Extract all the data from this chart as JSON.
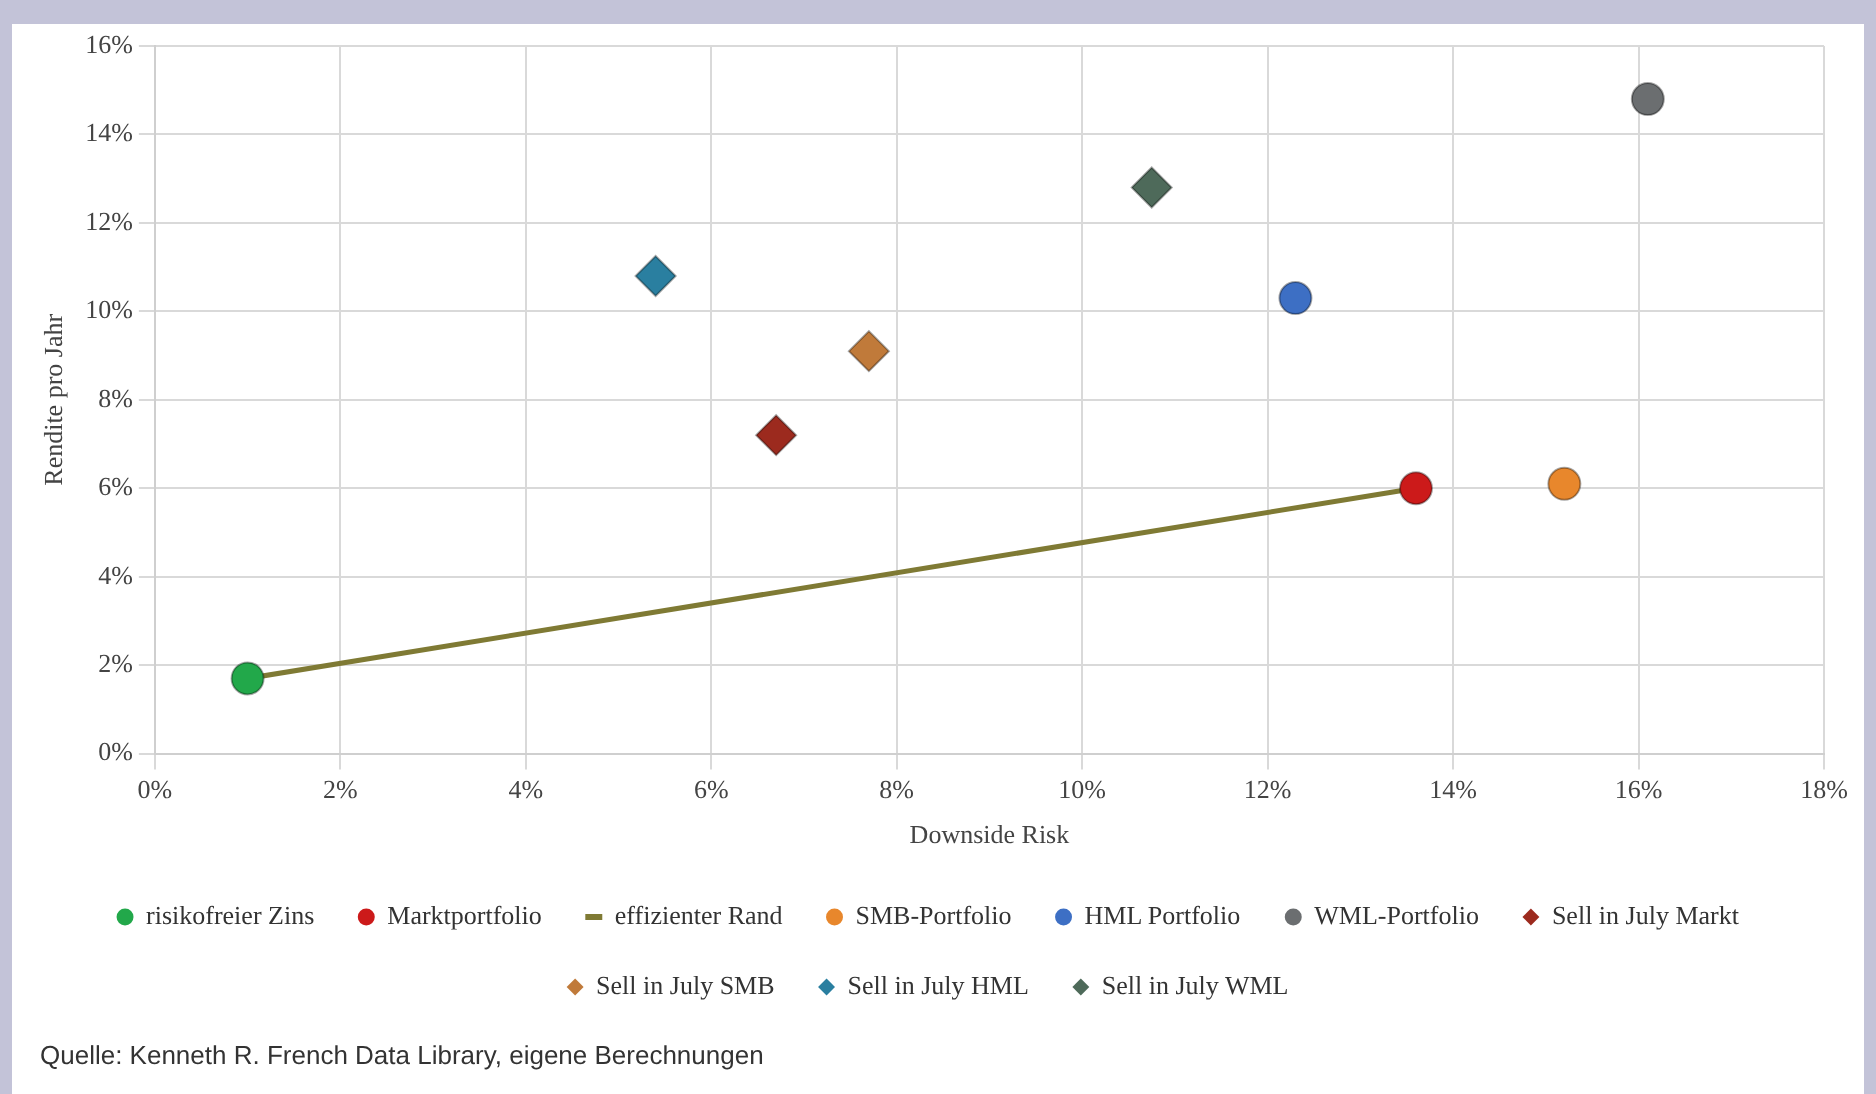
{
  "chart_data": {
    "type": "scatter",
    "xlabel": "Downside Risk",
    "ylabel": "Rendite pro Jahr",
    "xlim": [
      0,
      18
    ],
    "xticks": [
      {
        "value": 0,
        "label": "0%"
      },
      {
        "value": 2,
        "label": "2%"
      },
      {
        "value": 4,
        "label": "4%"
      },
      {
        "value": 6,
        "label": "6%"
      },
      {
        "value": 8,
        "label": "8%"
      },
      {
        "value": 10,
        "label": "10%"
      },
      {
        "value": 12,
        "label": "12%"
      },
      {
        "value": 14,
        "label": "14%"
      },
      {
        "value": 16,
        "label": "16%"
      },
      {
        "value": 18,
        "label": "18%"
      }
    ],
    "ylim": [
      0,
      16
    ],
    "yticks": [
      {
        "value": 0,
        "label": "0%"
      },
      {
        "value": 2,
        "label": "2%"
      },
      {
        "value": 4,
        "label": "4%"
      },
      {
        "value": 6,
        "label": "6%"
      },
      {
        "value": 8,
        "label": "8%"
      },
      {
        "value": 10,
        "label": "10%"
      },
      {
        "value": 12,
        "label": "12%"
      },
      {
        "value": 14,
        "label": "14%"
      },
      {
        "value": 16,
        "label": "16%"
      }
    ],
    "grid": true,
    "legend": "bottom",
    "series": [
      {
        "name": "risikofreier Zins",
        "marker": "circle",
        "color": "#22a84a",
        "x": [
          1.0
        ],
        "values": [
          1.7
        ]
      },
      {
        "name": "Marktportfolio",
        "marker": "circle",
        "color": "#cc1a1a",
        "x": [
          13.6
        ],
        "values": [
          6.0
        ]
      },
      {
        "name": "effizienter Rand",
        "type": "line",
        "marker": "none",
        "color": "#7f7a34",
        "x": [
          1.0,
          13.6
        ],
        "values": [
          1.7,
          6.0
        ]
      },
      {
        "name": "SMB-Portfolio",
        "marker": "circle",
        "color": "#e8872c",
        "x": [
          15.2
        ],
        "values": [
          6.1
        ]
      },
      {
        "name": "HML Portfolio",
        "marker": "circle",
        "color": "#3d6fc4",
        "x": [
          12.3
        ],
        "values": [
          10.3
        ]
      },
      {
        "name": "WML-Portfolio",
        "marker": "circle",
        "color": "#6b6e70",
        "x": [
          16.1
        ],
        "values": [
          14.8
        ]
      },
      {
        "name": "Sell in July Markt",
        "marker": "diamond",
        "color": "#9c2a1e",
        "x": [
          6.7
        ],
        "values": [
          7.2
        ]
      },
      {
        "name": "Sell in July SMB",
        "marker": "diamond",
        "color": "#c07a3a",
        "x": [
          7.7
        ],
        "values": [
          9.1
        ]
      },
      {
        "name": "Sell in July HML",
        "marker": "diamond",
        "color": "#2a7fa0",
        "x": [
          5.4
        ],
        "values": [
          10.8
        ]
      },
      {
        "name": "Sell in July WML",
        "marker": "diamond",
        "color": "#4e6a5a",
        "x": [
          10.75
        ],
        "values": [
          12.8
        ]
      }
    ],
    "annotations": [
      "Quelle: Kenneth R. French Data Library, eigene Berechnungen"
    ]
  }
}
